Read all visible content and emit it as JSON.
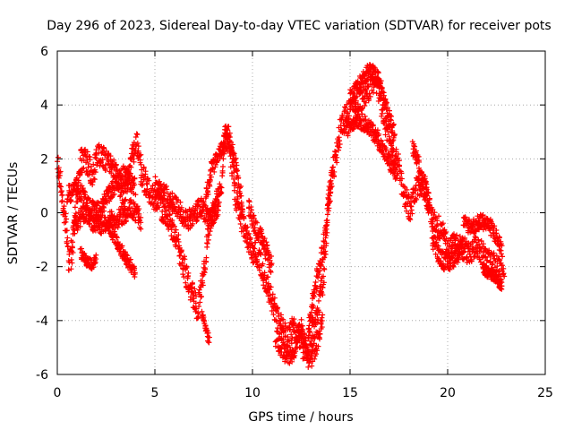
{
  "chart_data": {
    "type": "scatter",
    "title": "Day 296 of 2023, Sidereal Day-to-day VTEC variation (SDTVAR) for receiver pots",
    "xlabel": "GPS time / hours",
    "ylabel": "SDTVAR / TECUs",
    "xlim": [
      0,
      25
    ],
    "ylim": [
      -6,
      6
    ],
    "xticks": [
      0,
      5,
      10,
      15,
      20,
      25
    ],
    "yticks": [
      -6,
      -4,
      -2,
      0,
      2,
      4,
      6
    ],
    "grid": true,
    "marker": "+",
    "series": [
      {
        "name": "SDTVAR",
        "color": "#ff0000",
        "anchors": [
          [
            0.0,
            1.8
          ],
          [
            0.15,
            1.2
          ],
          [
            0.45,
            -0.4
          ],
          [
            0.6,
            -2.0
          ],
          [
            0.8,
            -1.2
          ],
          [
            1.0,
            0.5
          ],
          [
            1.2,
            1.9
          ],
          [
            1.5,
            2.0
          ],
          [
            1.8,
            1.4
          ],
          [
            2.1,
            2.1
          ],
          [
            2.5,
            2.0
          ],
          [
            2.8,
            1.8
          ],
          [
            3.1,
            1.3
          ],
          [
            3.4,
            0.4
          ],
          [
            3.6,
            1.2
          ],
          [
            3.8,
            2.1
          ],
          [
            4.1,
            2.5
          ],
          [
            4.3,
            1.5
          ],
          [
            4.6,
            0.9
          ],
          [
            4.9,
            0.6
          ],
          [
            5.2,
            0.5
          ],
          [
            5.5,
            -0.2
          ],
          [
            5.8,
            -0.4
          ],
          [
            6.1,
            -0.9
          ],
          [
            6.4,
            -1.8
          ],
          [
            6.7,
            -2.6
          ],
          [
            7.0,
            -3.1
          ],
          [
            7.2,
            -3.6
          ],
          [
            7.5,
            -2.2
          ],
          [
            7.8,
            -0.4
          ],
          [
            8.1,
            0.2
          ],
          [
            8.4,
            1.0
          ],
          [
            8.6,
            2.9
          ],
          [
            8.9,
            2.2
          ],
          [
            9.1,
            0.7
          ],
          [
            9.4,
            -0.1
          ],
          [
            9.7,
            -0.9
          ],
          [
            10.0,
            -1.4
          ],
          [
            10.3,
            -1.6
          ],
          [
            10.6,
            -2.3
          ],
          [
            10.9,
            -3.0
          ],
          [
            11.2,
            -3.7
          ],
          [
            11.5,
            -4.3
          ],
          [
            11.8,
            -4.6
          ],
          [
            12.1,
            -4.3
          ],
          [
            12.4,
            -4.8
          ],
          [
            12.7,
            -5.1
          ],
          [
            13.0,
            -4.6
          ],
          [
            13.3,
            -3.9
          ],
          [
            13.6,
            -2.6
          ],
          [
            13.9,
            0.5
          ],
          [
            14.2,
            1.9
          ],
          [
            14.5,
            3.1
          ],
          [
            14.8,
            3.6
          ],
          [
            15.1,
            3.8
          ],
          [
            15.4,
            4.0
          ],
          [
            15.7,
            4.3
          ],
          [
            16.0,
            4.6
          ],
          [
            16.3,
            5.0
          ],
          [
            16.6,
            4.1
          ],
          [
            16.9,
            3.0
          ],
          [
            17.2,
            2.4
          ],
          [
            17.5,
            1.7
          ],
          [
            17.8,
            0.6
          ],
          [
            18.1,
            0.1
          ],
          [
            18.4,
            0.9
          ],
          [
            18.7,
            1.2
          ],
          [
            19.0,
            0.4
          ],
          [
            19.3,
            -0.4
          ],
          [
            19.6,
            -0.6
          ],
          [
            19.9,
            -1.1
          ],
          [
            20.2,
            -1.3
          ],
          [
            20.5,
            -1.1
          ],
          [
            20.8,
            -1.3
          ],
          [
            21.1,
            -1.5
          ],
          [
            21.4,
            -1.3
          ],
          [
            21.7,
            -1.4
          ],
          [
            22.0,
            -1.8
          ],
          [
            22.3,
            -1.9
          ],
          [
            22.6,
            -2.1
          ],
          [
            22.9,
            -2.4
          ]
        ],
        "loops": [
          {
            "anchors": [
              [
                0.5,
                0.6
              ],
              [
                1.0,
                1.0
              ],
              [
                1.6,
                0.2
              ],
              [
                2.2,
                0.0
              ],
              [
                2.8,
                0.9
              ],
              [
                3.4,
                1.4
              ],
              [
                4.0,
                1.0
              ]
            ],
            "spread": 0.35
          },
          {
            "anchors": [
              [
                0.8,
                -0.5
              ],
              [
                1.4,
                0.0
              ],
              [
                2.0,
                -0.5
              ],
              [
                2.6,
                -0.3
              ],
              [
                3.2,
                -0.2
              ],
              [
                3.8,
                0.2
              ],
              [
                4.3,
                -0.3
              ]
            ],
            "spread": 0.35
          },
          {
            "anchors": [
              [
                2.6,
                -0.4
              ],
              [
                3.0,
                -1.0
              ],
              [
                3.4,
                -1.6
              ],
              [
                3.8,
                -2.0
              ],
              [
                4.0,
                -2.3
              ]
            ],
            "spread": 0.25
          },
          {
            "anchors": [
              [
                1.2,
                -1.5
              ],
              [
                1.5,
                -1.8
              ],
              [
                1.8,
                -1.9
              ],
              [
                2.0,
                -1.7
              ]
            ],
            "spread": 0.2
          },
          {
            "anchors": [
              [
                5.0,
                1.0
              ],
              [
                5.6,
                0.6
              ],
              [
                6.2,
                0.1
              ],
              [
                6.8,
                -0.3
              ],
              [
                7.3,
                0.2
              ],
              [
                7.8,
                -0.2
              ],
              [
                8.3,
                0.3
              ]
            ],
            "spread": 0.4
          },
          {
            "anchors": [
              [
                7.4,
                -3.8
              ],
              [
                7.6,
                -4.3
              ],
              [
                7.8,
                -4.8
              ]
            ],
            "spread": 0.15
          },
          {
            "anchors": [
              [
                7.6,
                0.6
              ],
              [
                7.9,
                1.6
              ],
              [
                8.2,
                2.0
              ],
              [
                8.8,
                3.0
              ],
              [
                9.2,
                1.5
              ],
              [
                9.5,
                0.2
              ]
            ],
            "spread": 0.3
          },
          {
            "anchors": [
              [
                9.8,
                0.2
              ],
              [
                10.2,
                -0.6
              ],
              [
                10.6,
                -1.2
              ],
              [
                11.0,
                -2.0
              ]
            ],
            "spread": 0.35
          },
          {
            "anchors": [
              [
                11.2,
                -4.6
              ],
              [
                11.6,
                -5.2
              ],
              [
                12.0,
                -5.3
              ],
              [
                12.5,
                -4.2
              ],
              [
                12.9,
                -5.6
              ],
              [
                13.3,
                -4.8
              ],
              [
                13.6,
                -4.0
              ]
            ],
            "spread": 0.35
          },
          {
            "anchors": [
              [
                12.9,
                -4.2
              ],
              [
                13.2,
                -2.8
              ],
              [
                13.6,
                -1.4
              ],
              [
                13.8,
                -0.4
              ],
              [
                14.1,
                1.7
              ]
            ],
            "spread": 0.35
          },
          {
            "anchors": [
              [
                15.0,
                4.3
              ],
              [
                15.5,
                4.8
              ],
              [
                16.0,
                5.3
              ],
              [
                16.5,
                4.9
              ],
              [
                16.9,
                3.7
              ],
              [
                17.3,
                2.9
              ]
            ],
            "spread": 0.3
          },
          {
            "anchors": [
              [
                14.8,
                3.1
              ],
              [
                15.3,
                3.5
              ],
              [
                15.8,
                3.3
              ],
              [
                16.4,
                2.8
              ],
              [
                16.9,
                2.0
              ],
              [
                17.4,
                1.4
              ]
            ],
            "spread": 0.3
          },
          {
            "anchors": [
              [
                18.2,
                2.4
              ],
              [
                18.5,
                1.8
              ],
              [
                18.8,
                1.0
              ],
              [
                19.1,
                0.3
              ]
            ],
            "spread": 0.3
          },
          {
            "anchors": [
              [
                19.2,
                -0.9
              ],
              [
                19.6,
                -1.6
              ],
              [
                20.0,
                -1.9
              ],
              [
                20.4,
                -1.6
              ],
              [
                20.8,
                -1.2
              ]
            ],
            "spread": 0.35
          },
          {
            "anchors": [
              [
                20.8,
                -0.4
              ],
              [
                21.3,
                -0.5
              ],
              [
                21.8,
                -0.3
              ],
              [
                22.3,
                -0.6
              ],
              [
                22.8,
                -1.4
              ]
            ],
            "spread": 0.3
          },
          {
            "anchors": [
              [
                21.8,
                -2.1
              ],
              [
                22.3,
                -2.3
              ],
              [
                22.8,
                -2.7
              ]
            ],
            "spread": 0.2
          }
        ]
      }
    ]
  }
}
